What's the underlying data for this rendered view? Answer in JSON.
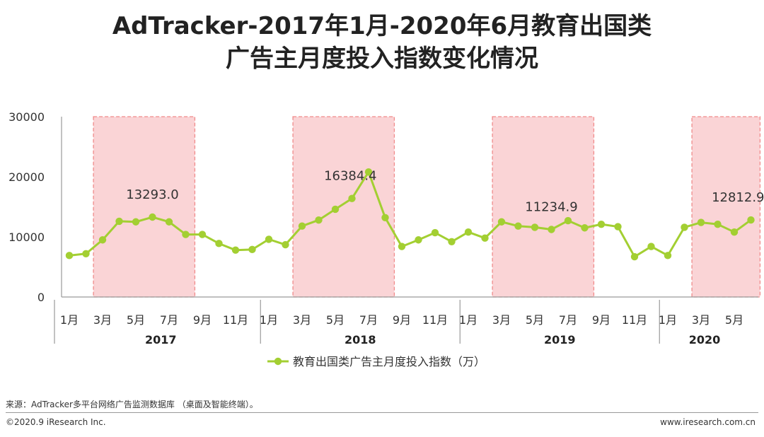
{
  "title": {
    "line1": "AdTracker-2017年1月-2020年6月教育出国类",
    "line2": "广告主月度投入指数变化情况"
  },
  "chart_data": {
    "type": "line",
    "series": [
      {
        "name": "教育出国类广告主月度投入指数（万）",
        "color": "#a3cf32",
        "values": [
          6900,
          7200,
          9500,
          12600,
          12500,
          13293.0,
          12500,
          10400,
          10400,
          8900,
          7800,
          7900,
          9600,
          8700,
          11800,
          12800,
          14600,
          16384.4,
          20800,
          13200,
          8400,
          9500,
          10700,
          9200,
          10800,
          9800,
          12500,
          11800,
          11600,
          11234.9,
          12700,
          11500,
          12100,
          11700,
          6700,
          8400,
          6900,
          11600,
          12400,
          12100,
          10800,
          12812.9
        ]
      }
    ],
    "data_labels": [
      {
        "index": 5,
        "text": "13293.0"
      },
      {
        "index": 17,
        "text": "16384.4"
      },
      {
        "index": 29,
        "text": "11234.9"
      },
      {
        "index": 41,
        "text": "12812.9"
      }
    ],
    "y_ticks": [
      "0",
      "10000",
      "20000",
      "30000"
    ],
    "ylim": [
      0,
      30000
    ],
    "month_labels": [
      "1月",
      "3月",
      "5月",
      "7月",
      "9月",
      "11月"
    ],
    "month_labels_2020": [
      "1月",
      "3月",
      "5月"
    ],
    "years": [
      "2017",
      "2018",
      "2019",
      "2020"
    ],
    "highlight_ranges": [
      [
        2,
        7
      ],
      [
        14,
        19
      ],
      [
        26,
        31
      ],
      [
        38,
        41
      ]
    ],
    "highlight_fill": "#fad4d6",
    "highlight_border": "#f08a8a",
    "grid": false,
    "legend_position": "bottom-center"
  },
  "footer": {
    "source": "来源：AdTracker多平台网络广告监测数据库 （桌面及智能终端）。",
    "copyright": "©2020.9 iResearch Inc.",
    "website": "www.iresearch.com.cn"
  }
}
